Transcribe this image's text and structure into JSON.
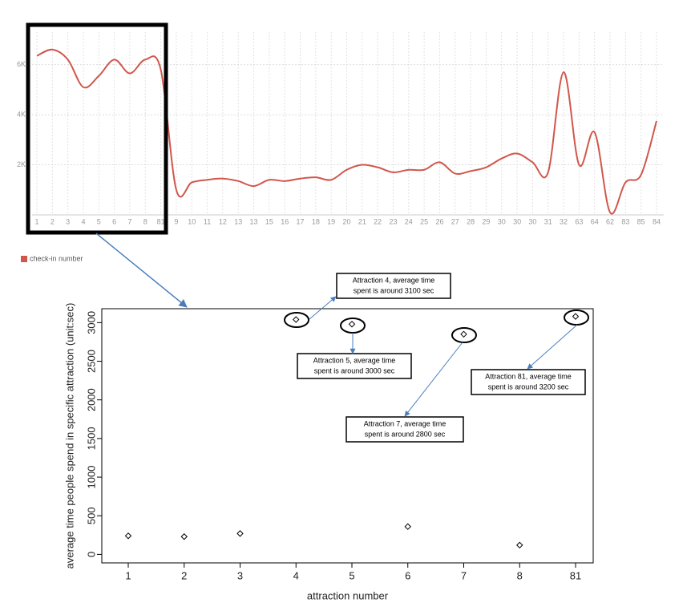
{
  "chart_data": [
    {
      "type": "line",
      "categories": [
        "1",
        "2",
        "3",
        "4",
        "5",
        "6",
        "7",
        "8",
        "81",
        "9",
        "10",
        "11",
        "12",
        "13",
        "13",
        "15",
        "16",
        "17",
        "18",
        "19",
        "20",
        "21",
        "22",
        "23",
        "24",
        "25",
        "26",
        "27",
        "28",
        "29",
        "30",
        "30",
        "30",
        "31",
        "32",
        "63",
        "64",
        "62",
        "83",
        "85",
        "84"
      ],
      "series": [
        {
          "name": "check-in number",
          "color": "#d0574b",
          "values": [
            6350,
            6600,
            6200,
            5100,
            5550,
            6200,
            5650,
            6200,
            5800,
            1000,
            1300,
            1400,
            1450,
            1350,
            1150,
            1400,
            1350,
            1450,
            1500,
            1400,
            1800,
            2000,
            1900,
            1700,
            1800,
            1800,
            2100,
            1650,
            1750,
            1900,
            2250,
            2450,
            2100,
            1700,
            5700,
            2000,
            3300,
            100,
            1300,
            1600,
            3750
          ]
        }
      ],
      "ylim": [
        0,
        7300
      ],
      "yticks": [
        {
          "value": 2000,
          "label": "2K"
        },
        {
          "value": 4000,
          "label": "4K"
        },
        {
          "value": 6000,
          "label": "6K"
        }
      ],
      "grid": true,
      "legend": "bottom-left"
    },
    {
      "type": "scatter",
      "categories": [
        "1",
        "2",
        "3",
        "4",
        "5",
        "6",
        "7",
        "8",
        "81"
      ],
      "values": [
        240,
        230,
        270,
        3040,
        2980,
        360,
        2850,
        120,
        3080
      ],
      "ylim": [
        -110,
        3180
      ],
      "yticks": [
        0,
        500,
        1000,
        1500,
        2000,
        2500,
        3000
      ],
      "xlabel": "attraction number",
      "ylabel": "average time people spend in specific attraction (unit:sec)",
      "annotations": [
        [
          "Attraction 4, average time",
          "spent is around 3100 sec"
        ],
        [
          "Attraction 5, average time",
          "spent is around 3000 sec"
        ],
        [
          "Attraction 7, average time",
          "spent is around 2800 sec"
        ],
        [
          "Attraction 81, average time",
          "spent is around 3200 sec"
        ]
      ]
    }
  ]
}
